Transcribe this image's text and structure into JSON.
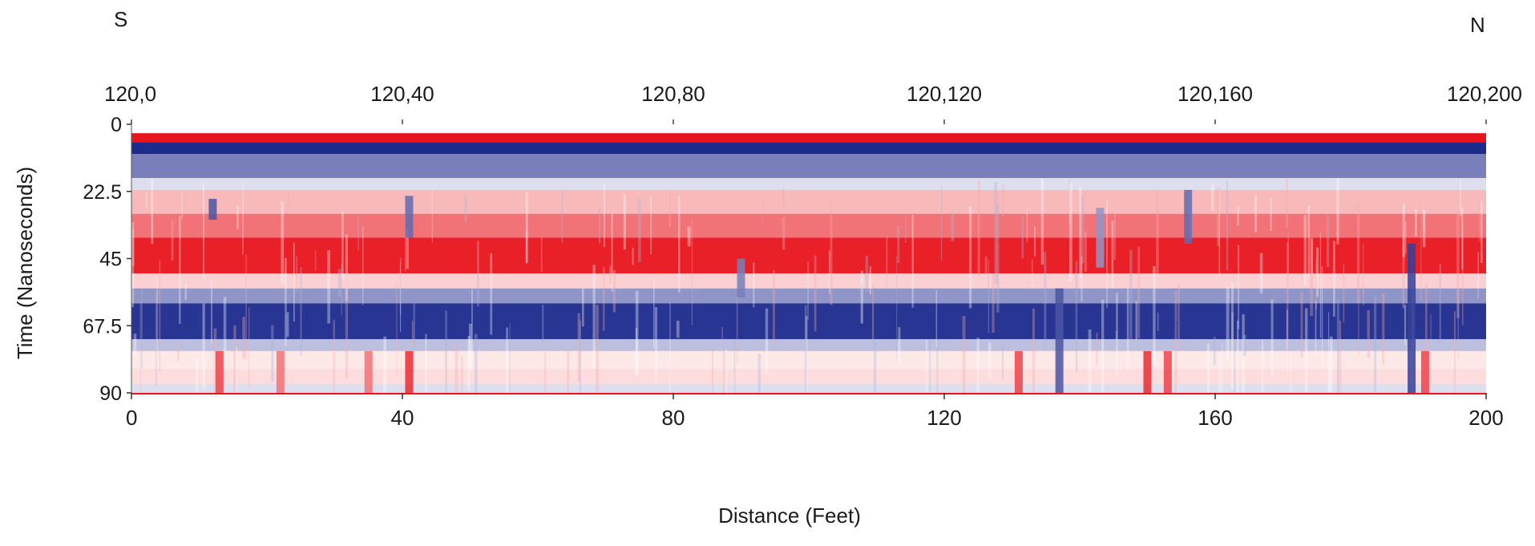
{
  "chart_data": {
    "type": "heatmap",
    "direction_labels": {
      "start": "S",
      "end": "N"
    },
    "top_ticks": [
      "120,0",
      "120,40",
      "120,80",
      "120,120",
      "120,160",
      "120,200"
    ],
    "xlabel": "Distance (Feet)",
    "ylabel": "Time (Nanoseconds)",
    "x_ticks": [
      0,
      40,
      80,
      120,
      160,
      200
    ],
    "y_ticks": [
      0,
      22.5,
      45,
      67.5,
      90
    ],
    "xlim": [
      0,
      200
    ],
    "ylim": [
      0,
      90
    ],
    "y_inverted": true,
    "colormap": {
      "negative": "#1e2a8c",
      "zero": "#ffffff",
      "positive": "#e8141c"
    },
    "bands": [
      {
        "from": 3,
        "to": 6,
        "amplitude": 1.0
      },
      {
        "from": 6,
        "to": 10,
        "amplitude": -1.0
      },
      {
        "from": 10,
        "to": 18,
        "amplitude": -0.6
      },
      {
        "from": 18,
        "to": 22,
        "amplitude": -0.15
      },
      {
        "from": 22,
        "to": 30,
        "amplitude": 0.3
      },
      {
        "from": 30,
        "to": 38,
        "amplitude": 0.6
      },
      {
        "from": 38,
        "to": 50,
        "amplitude": 0.95
      },
      {
        "from": 50,
        "to": 55,
        "amplitude": 0.2
      },
      {
        "from": 55,
        "to": 60,
        "amplitude": -0.5
      },
      {
        "from": 60,
        "to": 72,
        "amplitude": -0.95
      },
      {
        "from": 72,
        "to": 76,
        "amplitude": -0.3
      },
      {
        "from": 76,
        "to": 82,
        "amplitude": 0.1
      },
      {
        "from": 82,
        "to": 87,
        "amplitude": 0.15
      },
      {
        "from": 87,
        "to": 90,
        "amplitude": -0.15
      }
    ],
    "anomalies": [
      {
        "x": 12,
        "from": 25,
        "to": 32,
        "amplitude": -0.8
      },
      {
        "x": 41,
        "from": 24,
        "to": 38,
        "amplitude": -0.7
      },
      {
        "x": 41,
        "from": 76,
        "to": 90,
        "amplitude": 0.9
      },
      {
        "x": 13,
        "from": 76,
        "to": 90,
        "amplitude": 0.8
      },
      {
        "x": 22,
        "from": 76,
        "to": 90,
        "amplitude": 0.6
      },
      {
        "x": 35,
        "from": 76,
        "to": 90,
        "amplitude": 0.6
      },
      {
        "x": 90,
        "from": 45,
        "to": 58,
        "amplitude": -0.6
      },
      {
        "x": 131,
        "from": 76,
        "to": 90,
        "amplitude": 0.8
      },
      {
        "x": 137,
        "from": 55,
        "to": 90,
        "amplitude": -0.8
      },
      {
        "x": 143,
        "from": 28,
        "to": 48,
        "amplitude": -0.5
      },
      {
        "x": 150,
        "from": 76,
        "to": 90,
        "amplitude": 0.9
      },
      {
        "x": 153,
        "from": 76,
        "to": 90,
        "amplitude": 0.8
      },
      {
        "x": 156,
        "from": 22,
        "to": 40,
        "amplitude": -0.7
      },
      {
        "x": 189,
        "from": 40,
        "to": 90,
        "amplitude": -0.9
      },
      {
        "x": 191,
        "from": 76,
        "to": 90,
        "amplitude": 0.8
      }
    ]
  }
}
